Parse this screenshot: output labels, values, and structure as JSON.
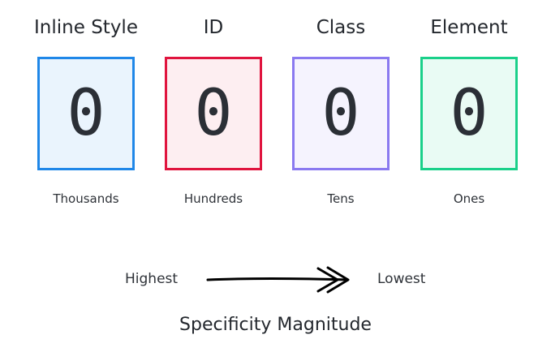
{
  "columns": [
    {
      "title": "Inline Style",
      "value": "0",
      "place": "Thousands",
      "border_color": "#1f87e8",
      "fill_color": "#eaf4fd"
    },
    {
      "title": "ID",
      "value": "0",
      "place": "Hundreds",
      "border_color": "#e0143e",
      "fill_color": "#fdeef1"
    },
    {
      "title": "Class",
      "value": "0",
      "place": "Tens",
      "border_color": "#8a79f0",
      "fill_color": "#f5f3fe"
    },
    {
      "title": "Element",
      "value": "0",
      "place": "Ones",
      "border_color": "#1ad08a",
      "fill_color": "#e9fbf4"
    }
  ],
  "scale": {
    "high_label": "Highest",
    "low_label": "Lowest",
    "arrow_icon": "double-chevron-arrow-right"
  },
  "caption": "Specificity Magnitude"
}
